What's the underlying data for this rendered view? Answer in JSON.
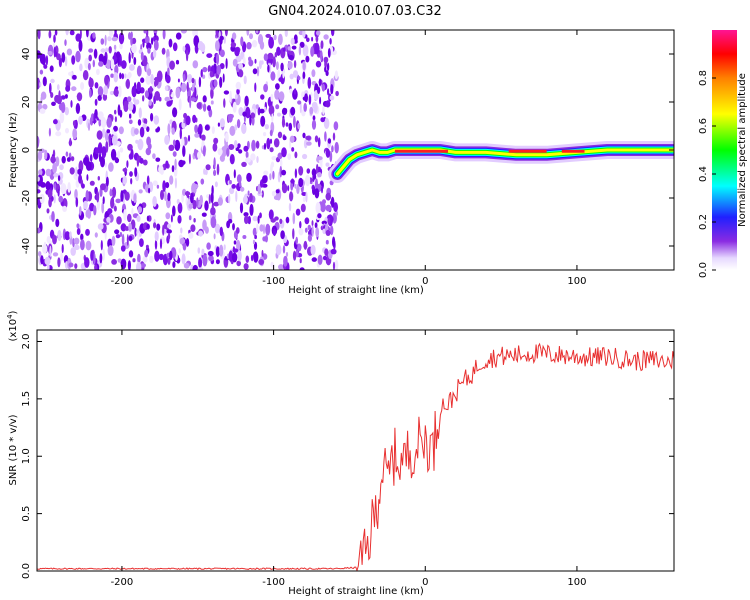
{
  "title": "GN04.2024.010.07.03.C32",
  "chart_data": [
    {
      "type": "heatmap",
      "xlabel": "Height of straight line (km)",
      "ylabel": "Frequency (Hz)",
      "xlim": [
        -256,
        164
      ],
      "ylim": [
        -50,
        50
      ],
      "x_ticks": [
        -200,
        -100,
        0,
        100
      ],
      "y_ticks": [
        -40,
        -20,
        0,
        20,
        40
      ],
      "colorbar": {
        "label": "Normalized spectral amplitude",
        "range": [
          0,
          1
        ],
        "ticks": [
          "0.0",
          "0.2",
          "0.4",
          "0.6",
          "0.8"
        ]
      },
      "noise_region_x": [
        -256,
        -58
      ],
      "signal_track": {
        "x": [
          -58,
          -50,
          -45,
          -40,
          -35,
          -30,
          -25,
          -20,
          -10,
          0,
          10,
          20,
          40,
          60,
          80,
          100,
          120,
          140,
          164
        ],
        "frequency": [
          -10,
          -4,
          -2,
          -1,
          0,
          -1,
          -1,
          0,
          0,
          0,
          0,
          -1,
          -1,
          -2,
          -2,
          -1,
          0,
          0,
          0
        ]
      }
    },
    {
      "type": "line",
      "xlabel": "Height of straight line (km)",
      "ylabel": "SNR (10 * v/v)",
      "y_multiplier": "(x10",
      "y_multiplier_exp": "4",
      "y_multiplier_close": ")",
      "xlim": [
        -256,
        164
      ],
      "ylim": [
        0,
        2.1
      ],
      "x_ticks": [
        -200,
        -100,
        0,
        100
      ],
      "y_ticks": [
        "0.0",
        "0.5",
        "1.0",
        "1.5",
        "2.0"
      ],
      "color": "#e83030",
      "x": [
        -256,
        -200,
        -150,
        -100,
        -60,
        -45,
        -40,
        -38,
        -35,
        -32,
        -30,
        -28,
        -25,
        -22,
        -20,
        -15,
        -10,
        -5,
        0,
        5,
        8,
        10,
        15,
        20,
        25,
        30,
        35,
        40,
        45,
        50,
        60,
        70,
        80,
        90,
        100,
        110,
        120,
        130,
        140,
        150,
        160,
        164
      ],
      "values": [
        0.02,
        0.02,
        0.02,
        0.02,
        0.02,
        0.03,
        0.12,
        0.2,
        0.4,
        0.55,
        0.75,
        0.9,
        0.78,
        0.95,
        1.0,
        0.95,
        1.05,
        1.1,
        1.15,
        1.05,
        1.3,
        1.45,
        1.45,
        1.55,
        1.65,
        1.7,
        1.8,
        1.85,
        1.86,
        1.87,
        1.88,
        1.9,
        1.89,
        1.88,
        1.87,
        1.86,
        1.87,
        1.85,
        1.83,
        1.84,
        1.82,
        1.85
      ]
    }
  ]
}
